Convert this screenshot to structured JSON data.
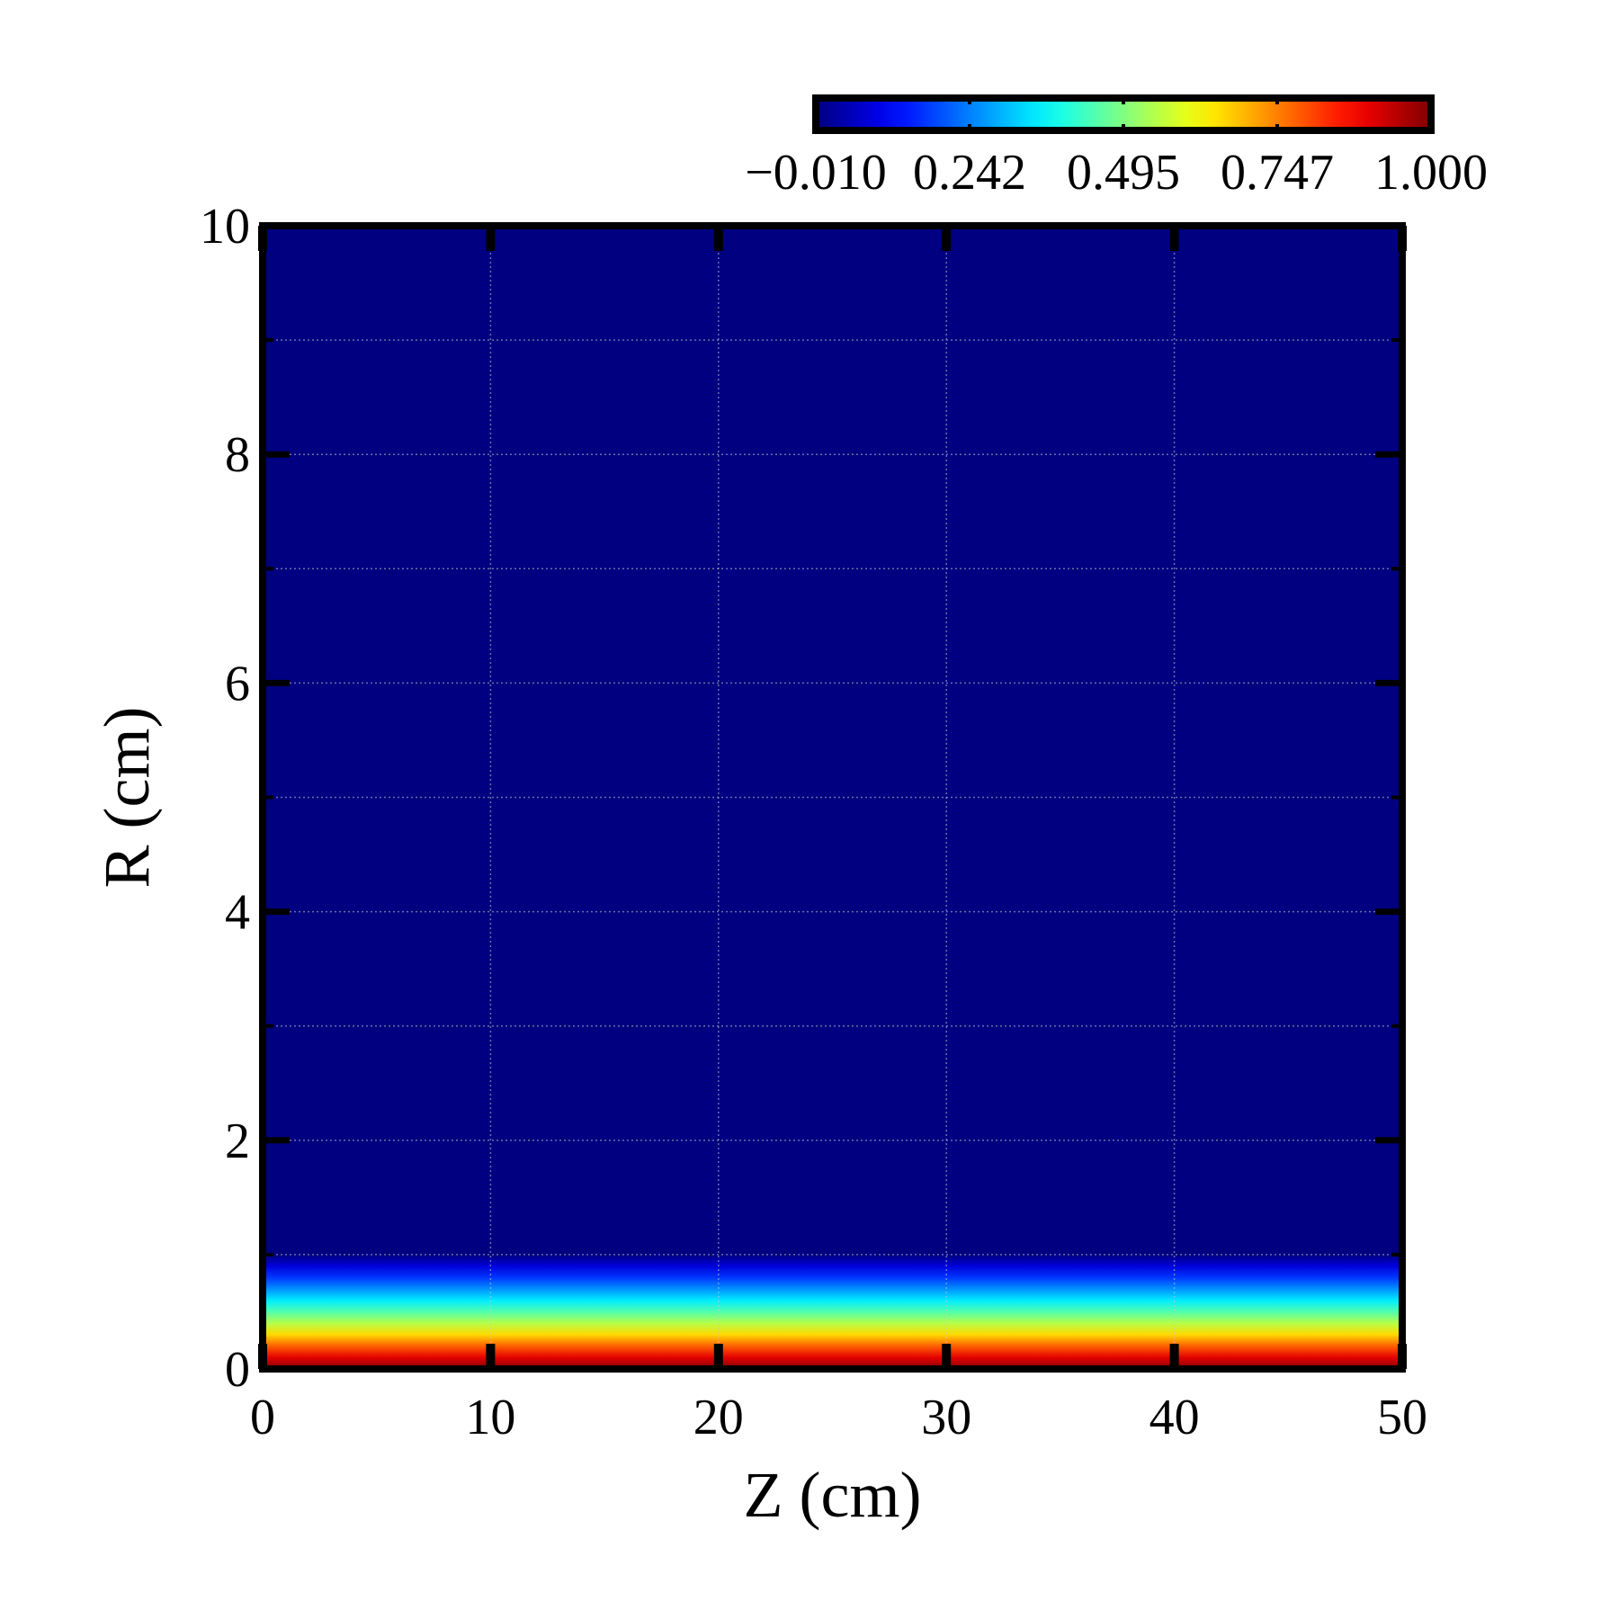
{
  "chart_data": {
    "type": "heatmap",
    "title": "",
    "xlabel": "Z (cm)",
    "ylabel": "R (cm)",
    "xlim": [
      0,
      50
    ],
    "ylim": [
      0,
      10
    ],
    "x_ticks": [
      0,
      10,
      20,
      30,
      40,
      50
    ],
    "y_ticks": [
      0,
      2,
      4,
      6,
      8,
      10
    ],
    "grid": true,
    "colormap": "jet",
    "colorbar": {
      "placement": "top-right",
      "range": [
        -0.01,
        1.0
      ],
      "tick_labels": [
        "−0.010",
        "0.242",
        "0.495",
        "0.747",
        "1.000"
      ]
    },
    "field": {
      "description_of_values": "value depends only on R; uniform along Z",
      "profile": [
        {
          "r": 0.0,
          "value": 1.0
        },
        {
          "r": 0.1,
          "value": 0.9
        },
        {
          "r": 0.2,
          "value": 0.78
        },
        {
          "r": 0.3,
          "value": 0.66
        },
        {
          "r": 0.4,
          "value": 0.55
        },
        {
          "r": 0.5,
          "value": 0.45
        },
        {
          "r": 0.6,
          "value": 0.35
        },
        {
          "r": 0.7,
          "value": 0.26
        },
        {
          "r": 0.8,
          "value": 0.17
        },
        {
          "r": 0.9,
          "value": 0.08
        },
        {
          "r": 1.0,
          "value": -0.01
        },
        {
          "r": 10.0,
          "value": -0.01
        }
      ]
    }
  }
}
